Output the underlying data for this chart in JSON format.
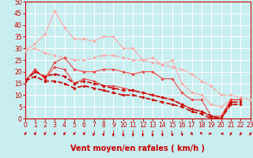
{
  "background_color": "#c8eef0",
  "grid_color": "#ffffff",
  "xlabel": "Vent moyen/en rafales ( km/h )",
  "xlabel_color": "#cc0000",
  "xlabel_fontsize": 7,
  "tick_color": "#cc0000",
  "tick_fontsize": 5.5,
  "xmin": 0,
  "xmax": 23,
  "ymin": 0,
  "ymax": 50,
  "yticks": [
    0,
    5,
    10,
    15,
    20,
    25,
    30,
    35,
    40,
    45,
    50
  ],
  "xticks": [
    0,
    1,
    2,
    3,
    4,
    5,
    6,
    7,
    8,
    9,
    10,
    11,
    12,
    13,
    14,
    15,
    16,
    17,
    18,
    19,
    20,
    21,
    22,
    23
  ],
  "series": [
    {
      "x": [
        0,
        1,
        2,
        3,
        4,
        5,
        6,
        7,
        8,
        9,
        10,
        11,
        12,
        13,
        14,
        15,
        16,
        17,
        18,
        19,
        20,
        21,
        22
      ],
      "y": [
        29,
        32,
        36,
        46,
        39,
        34,
        34,
        33,
        35,
        35,
        30,
        30,
        25,
        26,
        23,
        25,
        15,
        11,
        10,
        6,
        5,
        8,
        8
      ],
      "color": "#ffaaaa",
      "marker": "D",
      "markersize": 1.8,
      "linewidth": 0.8
    },
    {
      "x": [
        0,
        1,
        2,
        3,
        4,
        5,
        6,
        7,
        8,
        9,
        10,
        11,
        12,
        13,
        14,
        15,
        16,
        17,
        18,
        19,
        20,
        21,
        22,
        23
      ],
      "y": [
        29,
        30,
        28,
        27,
        26,
        25,
        25,
        26,
        27,
        27,
        26,
        25,
        25,
        24,
        23,
        22,
        21,
        19,
        16,
        14,
        10,
        10,
        9,
        8
      ],
      "color": "#ffaaaa",
      "marker": "D",
      "markersize": 1.8,
      "linewidth": 1.0,
      "linestyle": "--"
    },
    {
      "x": [
        0,
        1,
        2,
        3,
        4,
        5,
        6,
        7,
        8,
        9,
        10,
        11,
        12,
        13,
        14,
        15,
        16,
        17,
        18,
        19,
        20,
        21,
        22
      ],
      "y": [
        16,
        21,
        17,
        22,
        21,
        15,
        17,
        16,
        14,
        14,
        13,
        12,
        11,
        10,
        9,
        8,
        6,
        4,
        3,
        1,
        0,
        8,
        8
      ],
      "color": "#ee4444",
      "marker": "D",
      "markersize": 1.8,
      "linewidth": 0.8
    },
    {
      "x": [
        0,
        1,
        2,
        3,
        4,
        5,
        6,
        7,
        8,
        9,
        10,
        11,
        12,
        13,
        14,
        15,
        16,
        17,
        18,
        19,
        20,
        21,
        22
      ],
      "y": [
        16,
        21,
        17,
        24,
        26,
        21,
        20,
        20,
        21,
        21,
        20,
        19,
        20,
        20,
        17,
        17,
        11,
        8,
        8,
        1,
        1,
        8,
        8
      ],
      "color": "#ee4444",
      "marker": "D",
      "markersize": 1.8,
      "linewidth": 0.8
    },
    {
      "x": [
        0,
        1,
        2,
        3,
        4,
        5,
        6,
        7,
        8,
        9,
        10,
        11,
        12,
        13,
        14,
        15,
        16,
        17,
        18,
        19,
        20,
        21,
        22
      ],
      "y": [
        16,
        20,
        18,
        19,
        18,
        15,
        16,
        15,
        14,
        13,
        12,
        12,
        11,
        10,
        9,
        8,
        6,
        4,
        3,
        1,
        0,
        7,
        7
      ],
      "color": "#cc0000",
      "marker": "D",
      "markersize": 1.8,
      "linewidth": 1.2,
      "linestyle": "--"
    },
    {
      "x": [
        0,
        1,
        2,
        3,
        4,
        5,
        6,
        7,
        8,
        9,
        10,
        11,
        12,
        13,
        14,
        15,
        16,
        17,
        18,
        19,
        20,
        21,
        22
      ],
      "y": [
        16,
        18,
        16,
        16,
        15,
        13,
        14,
        13,
        12,
        11,
        10,
        10,
        9,
        8,
        7,
        6,
        5,
        3,
        2,
        0,
        0,
        6,
        6
      ],
      "color": "#cc0000",
      "marker": "D",
      "markersize": 1.8,
      "linewidth": 1.2,
      "linestyle": "--"
    }
  ],
  "wind_arrows": [
    225,
    225,
    225,
    225,
    225,
    225,
    225,
    210,
    200,
    190,
    180,
    180,
    180,
    180,
    170,
    160,
    150,
    135,
    120,
    90,
    270,
    45,
    45,
    45
  ]
}
